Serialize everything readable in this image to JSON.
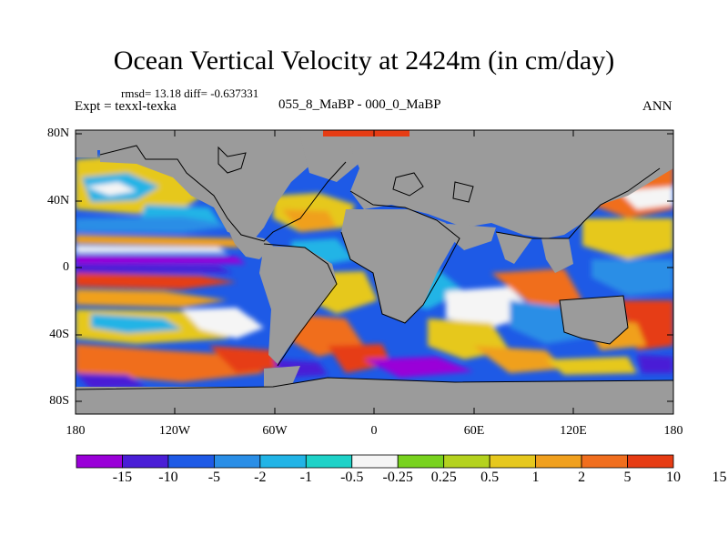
{
  "figure": {
    "title": "Ocean Vertical Velocity at 2424m (in cm/day)",
    "stats": "rmsd= 13.18 diff= -0.637331",
    "experiment": "Expt = texxl-texka",
    "case": "055_8_MaBP - 000_0_MaBP",
    "season": "ANN"
  },
  "axes": {
    "lat_labels": [
      "80N",
      "40N",
      "0",
      "40S",
      "80S"
    ],
    "lon_labels": [
      "180",
      "120W",
      "60W",
      "0",
      "60E",
      "120E",
      "180"
    ]
  },
  "colorbar": {
    "colors": [
      "#9a00d8",
      "#4a1ed6",
      "#1e5ae6",
      "#2a8ee6",
      "#22b4e6",
      "#1ed2c8",
      "#f5f5f5",
      "#78d21e",
      "#b4d21e",
      "#e6c81e",
      "#f0a01e",
      "#f06e1e",
      "#e63c14"
    ],
    "labels": [
      "-15",
      "-10",
      "-5",
      "-2",
      "-1",
      "-0.5",
      "-0.25",
      "0.25",
      "0.5",
      "1",
      "2",
      "5",
      "10",
      "15"
    ]
  },
  "colors": {
    "land": "#9b9b9b",
    "frame": "#000000"
  }
}
